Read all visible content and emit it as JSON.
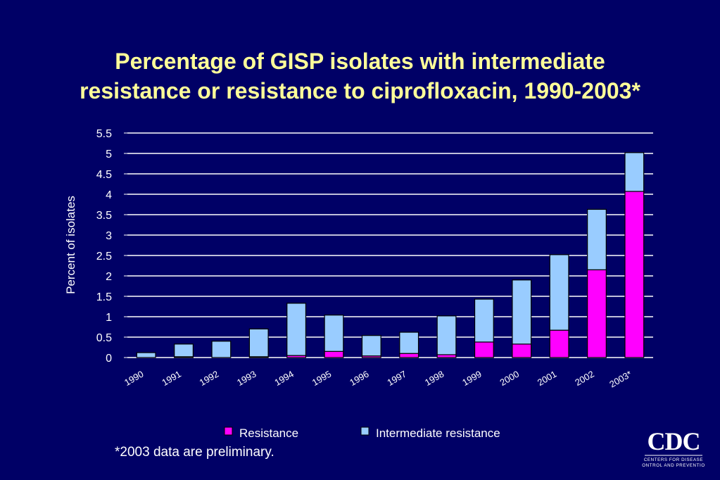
{
  "title": {
    "line1": "Percentage of GISP isolates with intermediate",
    "line2": "resistance or resistance to ciprofloxacin, 1990-2003*"
  },
  "footnote": "*2003 data are preliminary.",
  "logo": {
    "text": "CDC",
    "subtitle_line1": "Centers for Disease",
    "subtitle_line2": "Control and Prevention"
  },
  "colors": {
    "background": "#000066",
    "title": "#ffff99",
    "resistance": "#ff00ff",
    "intermediate": "#99ccff"
  },
  "chart_data": {
    "type": "bar",
    "stacked": true,
    "title": "Percentage of GISP isolates with intermediate resistance or resistance to ciprofloxacin, 1990-2003*",
    "ylabel": "Percent of isolates",
    "xlabel": "",
    "ylim": [
      0,
      5.5
    ],
    "yticks": [
      "0",
      "0.5",
      "1",
      "1.5",
      "2",
      "2.5",
      "3",
      "3.5",
      "4",
      "4.5",
      "5",
      "5.5"
    ],
    "grid": true,
    "legend_position": "bottom",
    "categories": [
      "1990",
      "1991",
      "1992",
      "1993",
      "1994",
      "1995",
      "1996",
      "1997",
      "1998",
      "1999",
      "2000",
      "2001",
      "2002",
      "2003*"
    ],
    "series": [
      {
        "name": "Resistance",
        "color": "#ff00ff",
        "values": [
          0,
          0.02,
          0,
          0.02,
          0.05,
          0.15,
          0.04,
          0.1,
          0.07,
          0.38,
          0.33,
          0.67,
          2.15,
          4.07
        ]
      },
      {
        "name": "Intermediate resistance",
        "color": "#99ccff",
        "values": [
          0.12,
          0.31,
          0.4,
          0.68,
          1.28,
          0.89,
          0.5,
          0.52,
          0.95,
          1.05,
          1.57,
          1.85,
          1.48,
          0.95
        ]
      }
    ]
  }
}
